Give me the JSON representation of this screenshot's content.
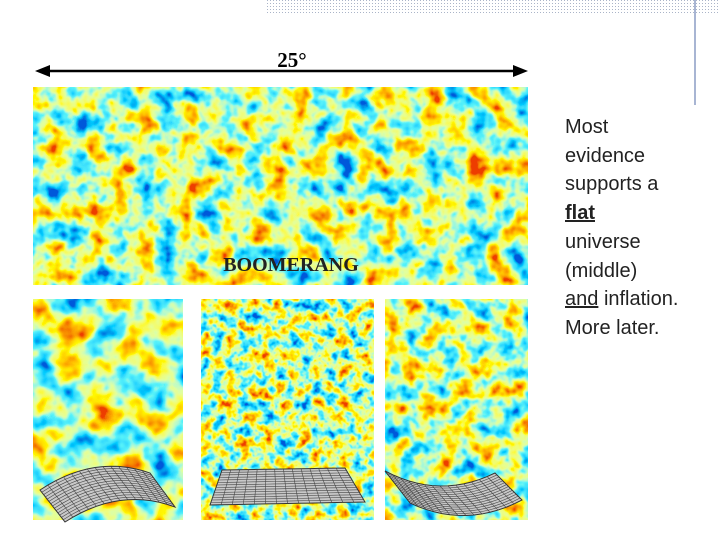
{
  "figure": {
    "scale_label": "25°",
    "map_label": "BOOMERANG"
  },
  "bullet": [
    "Most",
    "evidence",
    "supports a",
    "flat",
    "universe",
    "(middle)",
    "and",
    "inflation.",
    "More later."
  ]
}
